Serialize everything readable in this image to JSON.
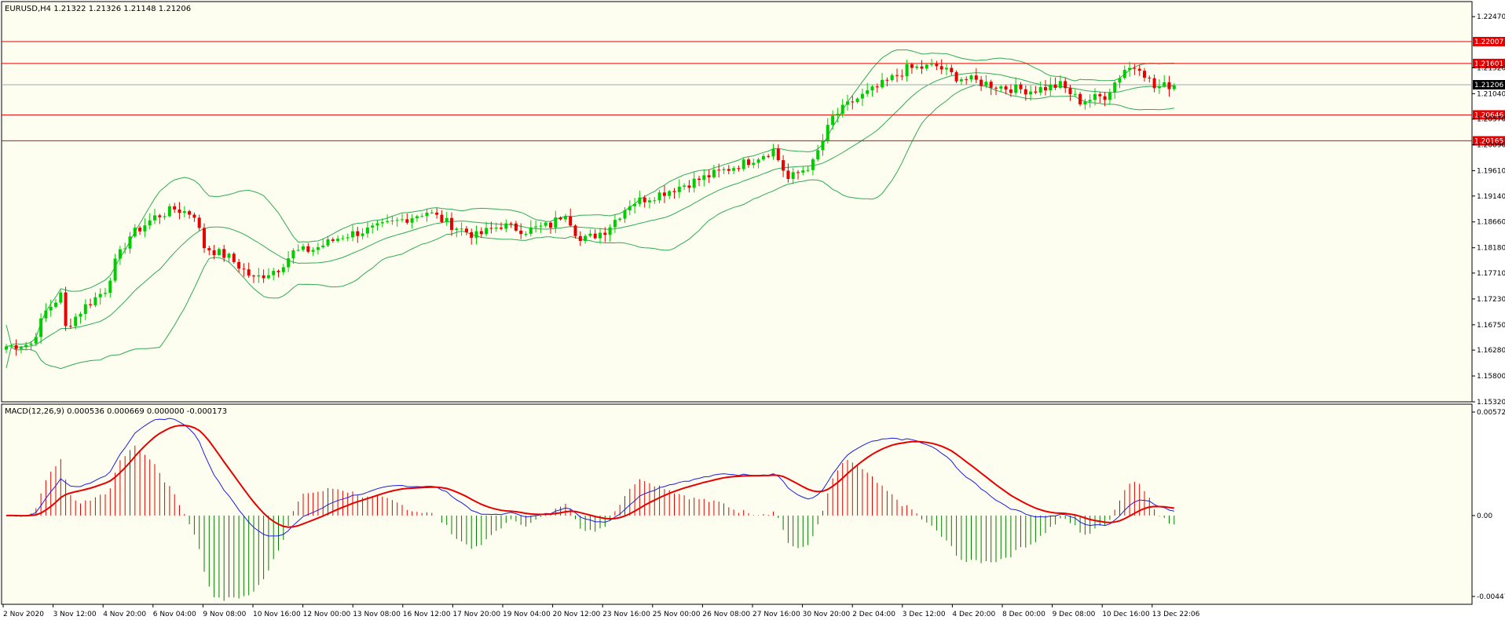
{
  "main": {
    "header": "EURUSD,H4  1.21322 1.21326 1.21148 1.21206",
    "background": "#fefef0",
    "ylim": [
      1.1532,
      1.2275
    ],
    "y_ticks": [
      "1.22470",
      "1.21520",
      "1.21040",
      "1.20570",
      "1.20090",
      "1.19610",
      "1.19140",
      "1.18660",
      "1.18180",
      "1.17710",
      "1.17230",
      "1.16750",
      "1.16280",
      "1.15800",
      "1.15320"
    ],
    "hlines": [
      {
        "value": 1.22007,
        "label": "1.22007",
        "color": "#e60000"
      },
      {
        "value": 1.21601,
        "label": "1.21601",
        "color": "#e60000"
      },
      {
        "value": 1.20646,
        "label": "1.20646",
        "color": "#e60000"
      },
      {
        "value": 1.20165,
        "label": "1.20165",
        "color": "#e60000"
      }
    ],
    "current_price": {
      "value": 1.21206,
      "label": "1.21206",
      "color": "#000000",
      "line_color": "#a0a8b0"
    },
    "bull_color": "#00cc00",
    "bear_color": "#e60000",
    "band_color": "#2eaa55"
  },
  "macd": {
    "header": "MACD(12,26,9) 0.000536 0.000669 0.000000 -0.000173",
    "y_ticks": [
      "0.005728",
      "0.00",
      "-0.004475"
    ],
    "ylim": [
      -0.004475,
      0.005728
    ],
    "hist_pos_color": "#e60000",
    "hist_neg_color": "#008000",
    "macd_color": "#1c1ce0",
    "signal_color": "#e60000"
  },
  "x_labels": [
    "2 Nov 2020",
    "3 Nov 12:00",
    "4 Nov 20:00",
    "6 Nov 04:00",
    "9 Nov 08:00",
    "10 Nov 16:00",
    "12 Nov 00:00",
    "13 Nov 08:00",
    "16 Nov 12:00",
    "17 Nov 20:00",
    "19 Nov 04:00",
    "20 Nov 12:00",
    "23 Nov 16:00",
    "25 Nov 00:00",
    "26 Nov 08:00",
    "27 Nov 16:00",
    "30 Nov 20:00",
    "2 Dec 04:00",
    "3 Dec 12:00",
    "4 Dec 20:00",
    "8 Dec 00:00",
    "9 Dec 08:00",
    "10 Dec 16:00",
    "13 Dec 22:06"
  ],
  "chart_data": [
    {
      "type": "candlestick",
      "title": "EURUSD,H4",
      "price_anchors": [
        [
          0,
          1.1635
        ],
        [
          5,
          1.164
        ],
        [
          8,
          1.17
        ],
        [
          11,
          1.173
        ],
        [
          12,
          1.167
        ],
        [
          16,
          1.171
        ],
        [
          20,
          1.174
        ],
        [
          22,
          1.179
        ],
        [
          25,
          1.184
        ],
        [
          30,
          1.1875
        ],
        [
          34,
          1.189
        ],
        [
          38,
          1.188
        ],
        [
          40,
          1.182
        ],
        [
          45,
          1.18
        ],
        [
          50,
          1.176
        ],
        [
          55,
          1.178
        ],
        [
          58,
          1.181
        ],
        [
          62,
          1.1815
        ],
        [
          68,
          1.184
        ],
        [
          75,
          1.1855
        ],
        [
          80,
          1.187
        ],
        [
          85,
          1.1885
        ],
        [
          90,
          1.186
        ],
        [
          95,
          1.184
        ],
        [
          100,
          1.186
        ],
        [
          105,
          1.185
        ],
        [
          110,
          1.186
        ],
        [
          113,
          1.1885
        ],
        [
          116,
          1.183
        ],
        [
          121,
          1.185
        ],
        [
          126,
          1.19
        ],
        [
          131,
          1.1915
        ],
        [
          137,
          1.1935
        ],
        [
          143,
          1.1955
        ],
        [
          149,
          1.1975
        ],
        [
          155,
          1.2
        ],
        [
          158,
          1.1945
        ],
        [
          163,
          1.1975
        ],
        [
          167,
          1.206
        ],
        [
          171,
          1.209
        ],
        [
          176,
          1.2115
        ],
        [
          182,
          1.215
        ],
        [
          188,
          1.2155
        ],
        [
          192,
          1.2135
        ],
        [
          197,
          1.2125
        ],
        [
          202,
          1.2115
        ],
        [
          207,
          1.211
        ],
        [
          213,
          1.212
        ],
        [
          217,
          1.209
        ],
        [
          222,
          1.21
        ],
        [
          226,
          1.215
        ],
        [
          229,
          1.2155
        ],
        [
          232,
          1.2115
        ],
        [
          236,
          1.2121
        ]
      ],
      "bars": 237
    },
    {
      "type": "bar",
      "title": "MACD(12,26,9)",
      "series": [
        {
          "name": "MACD",
          "values": []
        },
        {
          "name": "Signal",
          "values": []
        }
      ]
    }
  ]
}
